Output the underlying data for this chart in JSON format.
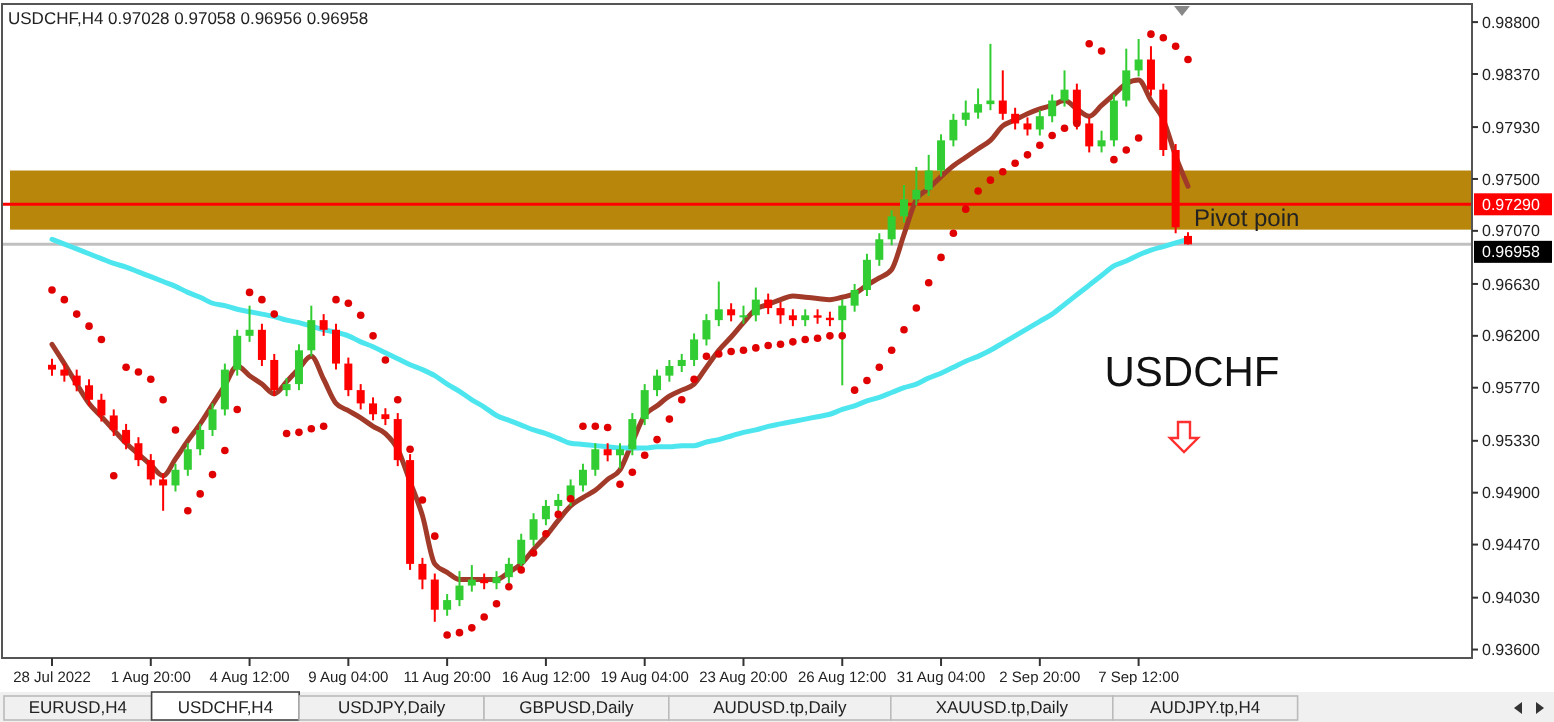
{
  "chart_data": {
    "type": "candlestick",
    "title": "USDCHF,H4  0.97028 0.97058 0.96956 0.96958",
    "annotations": [
      "USDCHF",
      "EURUSD,H4",
      "USDCHF,H4",
      "USDJPY,Daily",
      "GBPUSD,Daily",
      "AUDUSD.tp,Daily",
      "XAUUSD.tp,Daily",
      "AUDJPY.tp,H4"
    ],
    "categories": [
      "28 Jul 2022",
      null,
      null,
      null,
      null,
      null,
      null,
      null,
      "1 Aug 20:00",
      null,
      null,
      null,
      null,
      null,
      null,
      null,
      "4 Aug 12:00",
      null,
      null,
      null,
      null,
      null,
      null,
      null,
      "9 Aug 04:00",
      null,
      null,
      null,
      null,
      null,
      null,
      null,
      "11 Aug 20:00",
      null,
      null,
      null,
      null,
      null,
      null,
      null,
      "16 Aug 12:00",
      null,
      null,
      null,
      null,
      null,
      null,
      null,
      "19 Aug 04:00",
      null,
      null,
      null,
      null,
      null,
      null,
      null,
      "23 Aug 20:00",
      null,
      null,
      null,
      null,
      null,
      null,
      null,
      "26 Aug 12:00",
      null,
      null,
      null,
      null,
      null,
      null,
      null,
      "31 Aug 04:00",
      null,
      null,
      null,
      null,
      null,
      null,
      null,
      "2 Sep 20:00",
      null,
      null,
      null,
      null,
      null,
      null,
      null,
      "7 Sep 12:00",
      null,
      null,
      null,
      null
    ],
    "ohlc": [
      [
        0.9596,
        0.9601,
        0.9587,
        0.9592
      ],
      [
        0.9592,
        0.9597,
        0.9582,
        0.9587
      ],
      [
        0.9587,
        0.9592,
        0.9574,
        0.9579
      ],
      [
        0.9579,
        0.9584,
        0.9562,
        0.9567
      ],
      [
        0.9567,
        0.9572,
        0.9549,
        0.9554
      ],
      [
        0.9554,
        0.9559,
        0.9537,
        0.9542
      ],
      [
        0.9542,
        0.9547,
        0.9526,
        0.9531
      ],
      [
        0.9531,
        0.9536,
        0.9512,
        0.9517
      ],
      [
        0.9517,
        0.9522,
        0.9496,
        0.9501
      ],
      [
        0.9501,
        0.9506,
        0.9475,
        0.9496
      ],
      [
        0.9496,
        0.9514,
        0.9491,
        0.9509
      ],
      [
        0.9509,
        0.9531,
        0.9504,
        0.9526
      ],
      [
        0.9526,
        0.9547,
        0.9521,
        0.9542
      ],
      [
        0.9542,
        0.9564,
        0.9537,
        0.9559
      ],
      [
        0.9559,
        0.9597,
        0.9554,
        0.9592
      ],
      [
        0.9592,
        0.9625,
        0.9587,
        0.962
      ],
      [
        0.962,
        0.9645,
        0.9615,
        0.9625
      ],
      [
        0.9625,
        0.963,
        0.9595,
        0.96
      ],
      [
        0.96,
        0.9605,
        0.957,
        0.9575
      ],
      [
        0.9575,
        0.9585,
        0.957,
        0.958
      ],
      [
        0.958,
        0.9613,
        0.9575,
        0.9608
      ],
      [
        0.9608,
        0.9645,
        0.9603,
        0.9633
      ],
      [
        0.9633,
        0.9638,
        0.962,
        0.9625
      ],
      [
        0.9625,
        0.963,
        0.9592,
        0.9597
      ],
      [
        0.9597,
        0.9602,
        0.957,
        0.9575
      ],
      [
        0.9575,
        0.958,
        0.9559,
        0.9564
      ],
      [
        0.9564,
        0.9569,
        0.955,
        0.9555
      ],
      [
        0.9555,
        0.956,
        0.9546,
        0.9551
      ],
      [
        0.9551,
        0.9556,
        0.9512,
        0.9517
      ],
      [
        0.9517,
        0.9522,
        0.9426,
        0.9431
      ],
      [
        0.9431,
        0.9436,
        0.941,
        0.9418
      ],
      [
        0.9418,
        0.9423,
        0.9383,
        0.9393
      ],
      [
        0.9393,
        0.9406,
        0.9388,
        0.9401
      ],
      [
        0.9401,
        0.9425,
        0.9396,
        0.9413
      ],
      [
        0.9413,
        0.943,
        0.9408,
        0.9418
      ],
      [
        0.9418,
        0.9423,
        0.941,
        0.9415
      ],
      [
        0.9415,
        0.9425,
        0.941,
        0.942
      ],
      [
        0.942,
        0.9436,
        0.9415,
        0.9431
      ],
      [
        0.9431,
        0.9456,
        0.9426,
        0.9451
      ],
      [
        0.9451,
        0.9473,
        0.9446,
        0.9468
      ],
      [
        0.9468,
        0.9484,
        0.9463,
        0.9479
      ],
      [
        0.9479,
        0.9489,
        0.9474,
        0.9484
      ],
      [
        0.9484,
        0.9501,
        0.9479,
        0.9496
      ],
      [
        0.9496,
        0.9514,
        0.9491,
        0.9509
      ],
      [
        0.9509,
        0.9531,
        0.9504,
        0.9526
      ],
      [
        0.9526,
        0.9531,
        0.9516,
        0.9521
      ],
      [
        0.9521,
        0.9531,
        0.951,
        0.9526
      ],
      [
        0.9526,
        0.9556,
        0.9521,
        0.9551
      ],
      [
        0.9551,
        0.958,
        0.9546,
        0.9575
      ],
      [
        0.9575,
        0.9592,
        0.957,
        0.9587
      ],
      [
        0.9587,
        0.96,
        0.9582,
        0.9595
      ],
      [
        0.9595,
        0.9605,
        0.959,
        0.96
      ],
      [
        0.96,
        0.9622,
        0.9595,
        0.9617
      ],
      [
        0.9617,
        0.9638,
        0.9612,
        0.9633
      ],
      [
        0.9633,
        0.9665,
        0.9628,
        0.9642
      ],
      [
        0.9642,
        0.9647,
        0.9632,
        0.9637
      ],
      [
        0.9637,
        0.9645,
        0.963,
        0.9637
      ],
      [
        0.9637,
        0.966,
        0.9632,
        0.965
      ],
      [
        0.965,
        0.9655,
        0.9638,
        0.9643
      ],
      [
        0.9643,
        0.9648,
        0.963,
        0.9637
      ],
      [
        0.9637,
        0.9642,
        0.9628,
        0.9633
      ],
      [
        0.9633,
        0.9642,
        0.9628,
        0.9637
      ],
      [
        0.9637,
        0.9642,
        0.963,
        0.9635
      ],
      [
        0.9635,
        0.964,
        0.9628,
        0.9633
      ],
      [
        0.9633,
        0.965,
        0.9579,
        0.9645
      ],
      [
        0.9645,
        0.9663,
        0.964,
        0.9658
      ],
      [
        0.9658,
        0.9688,
        0.9653,
        0.9683
      ],
      [
        0.9683,
        0.9705,
        0.9678,
        0.97
      ],
      [
        0.97,
        0.9724,
        0.9695,
        0.9719
      ],
      [
        0.9719,
        0.9745,
        0.9714,
        0.9733
      ],
      [
        0.9733,
        0.976,
        0.9728,
        0.9741
      ],
      [
        0.9741,
        0.977,
        0.9736,
        0.9757
      ],
      [
        0.9757,
        0.9787,
        0.9752,
        0.9782
      ],
      [
        0.9782,
        0.9804,
        0.9777,
        0.9799
      ],
      [
        0.9799,
        0.9815,
        0.9794,
        0.9805
      ],
      [
        0.9805,
        0.9825,
        0.98,
        0.9812
      ],
      [
        0.9812,
        0.9862,
        0.9807,
        0.9815
      ],
      [
        0.9815,
        0.984,
        0.9799,
        0.9804
      ],
      [
        0.9804,
        0.9809,
        0.9791,
        0.9796
      ],
      [
        0.9796,
        0.9801,
        0.9786,
        0.9791
      ],
      [
        0.9791,
        0.9807,
        0.9786,
        0.9802
      ],
      [
        0.9802,
        0.982,
        0.9797,
        0.9815
      ],
      [
        0.9815,
        0.984,
        0.981,
        0.9824
      ],
      [
        0.9824,
        0.9829,
        0.9791,
        0.9796
      ],
      [
        0.9796,
        0.9801,
        0.9772,
        0.9777
      ],
      [
        0.9777,
        0.979,
        0.9772,
        0.9782
      ],
      [
        0.9782,
        0.982,
        0.9777,
        0.9815
      ],
      [
        0.9815,
        0.9858,
        0.981,
        0.984
      ],
      [
        0.984,
        0.9866,
        0.9835,
        0.9849
      ],
      [
        0.9849,
        0.986,
        0.9819,
        0.9824
      ],
      [
        0.9824,
        0.9829,
        0.9769,
        0.9774
      ],
      [
        0.9774,
        0.9779,
        0.9705,
        0.971
      ],
      [
        0.97028,
        0.97058,
        0.96956,
        0.96958
      ]
    ],
    "series": [
      {
        "type": "line",
        "color": "#a23a2a",
        "values": [
          0.9613,
          0.9597,
          0.958,
          0.9564,
          0.9553,
          0.9542,
          0.9531,
          0.9522,
          0.9513,
          0.9504,
          0.9518,
          0.9533,
          0.9547,
          0.9563,
          0.9579,
          0.9595,
          0.9587,
          0.958,
          0.9572,
          0.9582,
          0.9593,
          0.9603,
          0.9584,
          0.9564,
          0.9558,
          0.9552,
          0.9545,
          0.9539,
          0.9526,
          0.9499,
          0.9471,
          0.9431,
          0.9424,
          0.9418,
          0.9418,
          0.9418,
          0.9418,
          0.9424,
          0.9431,
          0.9443,
          0.9454,
          0.9467,
          0.9479,
          0.9486,
          0.9492,
          0.9501,
          0.9509,
          0.9532,
          0.9554,
          0.9562,
          0.957,
          0.9575,
          0.958,
          0.9594,
          0.9608,
          0.9619,
          0.9631,
          0.9642,
          0.9646,
          0.965,
          0.9653,
          0.9652,
          0.9651,
          0.965,
          0.9652,
          0.9655,
          0.9662,
          0.9668,
          0.9675,
          0.9704,
          0.9733,
          0.9742,
          0.9752,
          0.9761,
          0.9768,
          0.9775,
          0.9782,
          0.9794,
          0.9799,
          0.9804,
          0.9808,
          0.9811,
          0.9815,
          0.9808,
          0.9802,
          0.9811,
          0.982,
          0.9829,
          0.9832,
          0.9815,
          0.9799,
          0.9769,
          0.9744
        ]
      },
      {
        "type": "line",
        "color": "#4ee6ee",
        "values": [
          0.97,
          0.9696,
          0.9692,
          0.9688,
          0.9684,
          0.968,
          0.9677,
          0.9673,
          0.9669,
          0.9665,
          0.9661,
          0.9656,
          0.9652,
          0.9647,
          0.9645,
          0.9642,
          0.964,
          0.9638,
          0.9636,
          0.9633,
          0.9631,
          0.9628,
          0.9625,
          0.9623,
          0.962,
          0.9615,
          0.9611,
          0.9606,
          0.9601,
          0.9596,
          0.9592,
          0.9587,
          0.958,
          0.9574,
          0.9567,
          0.9561,
          0.9554,
          0.955,
          0.9546,
          0.9542,
          0.9539,
          0.9535,
          0.9531,
          0.953,
          0.9529,
          0.9528,
          0.9527,
          0.9527,
          0.9527,
          0.9528,
          0.9528,
          0.9529,
          0.9529,
          0.9532,
          0.9534,
          0.9537,
          0.954,
          0.9542,
          0.9545,
          0.9547,
          0.9549,
          0.9551,
          0.9553,
          0.9555,
          0.9559,
          0.9562,
          0.9566,
          0.9569,
          0.9573,
          0.9577,
          0.958,
          0.9585,
          0.9589,
          0.9594,
          0.9599,
          0.9603,
          0.9608,
          0.9614,
          0.962,
          0.9626,
          0.9632,
          0.9638,
          0.9646,
          0.9654,
          0.9662,
          0.967,
          0.9678,
          0.9682,
          0.9687,
          0.9691,
          0.9694,
          0.9697,
          0.97
        ]
      },
      {
        "type": "scatter",
        "color": "#e00000",
        "marker": "circle",
        "values": [
          0.9658,
          0.965,
          0.9638,
          0.9628,
          0.9617,
          0.9504,
          0.9594,
          0.959,
          0.9584,
          0.9567,
          0.9542,
          0.9475,
          0.9489,
          0.9505,
          0.9525,
          0.9559,
          0.9656,
          0.965,
          0.9638,
          0.9539,
          0.954,
          0.9543,
          0.9545,
          0.965,
          0.9647,
          0.9637,
          0.962,
          0.96,
          0.9567,
          0.9526,
          0.9484,
          0.9454,
          0.9372,
          0.9374,
          0.9378,
          0.9387,
          0.9398,
          0.9412,
          0.9426,
          0.944,
          0.9456,
          0.9472,
          0.9485,
          0.9545,
          0.9545,
          0.9544,
          0.9497,
          0.9507,
          0.9521,
          0.9534,
          0.9551,
          0.9567,
          0.9584,
          0.9603,
          0.9605,
          0.9607,
          0.9608,
          0.961,
          0.9612,
          0.9613,
          0.9615,
          0.9617,
          0.9618,
          0.962,
          0.962,
          0.9575,
          0.9583,
          0.9594,
          0.9608,
          0.9625,
          0.9643,
          0.9664,
          0.9685,
          0.9705,
          0.9725,
          0.974,
          0.9749,
          0.9756,
          0.9763,
          0.977,
          0.9778,
          0.9786,
          0.9792,
          0.9796,
          0.9862,
          0.9856,
          0.9766,
          0.9774,
          0.9784,
          0.987,
          0.9867,
          0.986,
          0.9849
        ]
      }
    ],
    "ylim": [
      0.9353,
      0.9895
    ],
    "yticks": [
      {
        "value": 0.988,
        "label": "0.98800"
      },
      {
        "value": 0.9837,
        "label": "0.98370"
      },
      {
        "value": 0.9793,
        "label": "0.97930"
      },
      {
        "value": 0.975,
        "label": "0.97500"
      },
      {
        "value": 0.9707,
        "label": "0.97070"
      },
      {
        "value": 0.9663,
        "label": "0.96630"
      },
      {
        "value": 0.962,
        "label": "0.96200"
      },
      {
        "value": 0.9577,
        "label": "0.95770"
      },
      {
        "value": 0.9533,
        "label": "0.95330"
      },
      {
        "value": 0.949,
        "label": "0.94900"
      },
      {
        "value": 0.9447,
        "label": "0.94470"
      },
      {
        "value": 0.9403,
        "label": "0.94030"
      },
      {
        "value": 0.936,
        "label": "0.93600"
      }
    ],
    "bands": [
      {
        "axis": "y",
        "from": 0.9708,
        "to": 0.9757,
        "label": "Pivot poin",
        "color": "#b8860b"
      }
    ],
    "ref_lines": [
      {
        "axis": "y",
        "value": 0.9729,
        "label": "0.97290",
        "color": "#ff0000"
      },
      {
        "axis": "y",
        "value": 0.96958,
        "label": "0.96958",
        "color": "#c0c0c0"
      }
    ]
  }
}
